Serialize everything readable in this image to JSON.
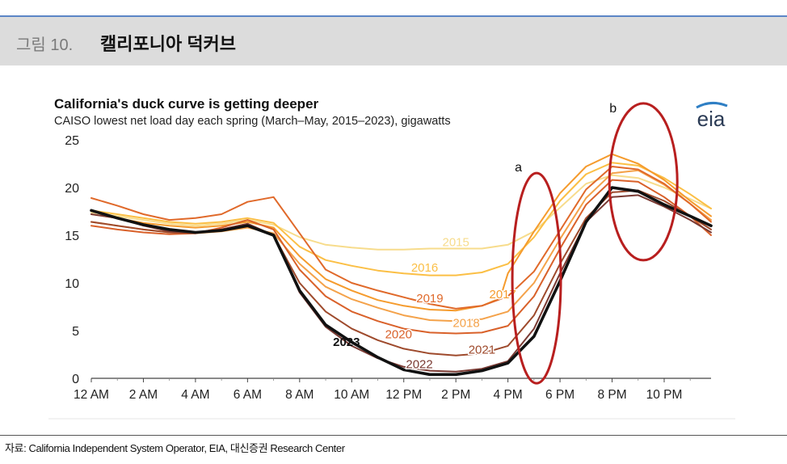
{
  "header": {
    "figure_label": "그림 10.",
    "figure_title": "캘리포니아 덕커브"
  },
  "source": "자료: California Independent System Operator, EIA, 대신증권 Research Center",
  "logo_text": "eia",
  "chart_data": {
    "type": "line",
    "title": "California's duck curve is getting deeper",
    "subtitle": "CAISO lowest net load day each spring (March–May, 2015–2023), gigawatts",
    "ylim": [
      0,
      25
    ],
    "yticks": [
      "0",
      "5",
      "10",
      "15",
      "20",
      "25"
    ],
    "xlim": [
      0,
      23.8
    ],
    "xticks": [
      {
        "hour": 0,
        "label": "12 AM"
      },
      {
        "hour": 2,
        "label": "2 AM"
      },
      {
        "hour": 4,
        "label": "4 AM"
      },
      {
        "hour": 6,
        "label": "6 AM"
      },
      {
        "hour": 8,
        "label": "8 AM"
      },
      {
        "hour": 10,
        "label": "10 AM"
      },
      {
        "hour": 12,
        "label": "12 PM"
      },
      {
        "hour": 14,
        "label": "2 PM"
      },
      {
        "hour": 16,
        "label": "4 PM"
      },
      {
        "hour": 18,
        "label": "6 PM"
      },
      {
        "hour": 20,
        "label": "8 PM"
      },
      {
        "hour": 22,
        "label": "10 PM"
      }
    ],
    "grid": false,
    "series": [
      {
        "name": "2015",
        "color": "#f7dc8c",
        "label_hour": 14.0,
        "label_value": 14.3,
        "x": [
          0,
          1,
          2,
          3,
          4,
          5,
          6,
          7,
          8,
          9,
          10,
          11,
          12,
          13,
          14,
          15,
          16,
          17,
          18,
          19,
          20,
          21,
          22,
          23,
          23.8
        ],
        "y": [
          17.4,
          17.0,
          16.6,
          16.2,
          16.0,
          16.2,
          16.6,
          16.1,
          14.8,
          14.0,
          13.7,
          13.5,
          13.5,
          13.6,
          13.6,
          13.6,
          14.0,
          15.4,
          17.9,
          20.4,
          21.3,
          21.0,
          20.0,
          18.8,
          17.8
        ]
      },
      {
        "name": "2016",
        "color": "#fbbf45",
        "label_hour": 12.8,
        "label_value": 11.6,
        "x": [
          0,
          1,
          2,
          3,
          4,
          5,
          6,
          7,
          8,
          9,
          10,
          11,
          12,
          13,
          14,
          15,
          16,
          17,
          18,
          19,
          20,
          21,
          22,
          23,
          23.8
        ],
        "y": [
          17.6,
          17.2,
          16.8,
          16.4,
          16.2,
          16.4,
          16.8,
          16.3,
          13.8,
          12.4,
          11.8,
          11.3,
          11.0,
          10.8,
          10.8,
          11.1,
          12.0,
          14.8,
          18.6,
          21.4,
          22.6,
          22.3,
          21.0,
          19.3,
          17.8
        ]
      },
      {
        "name": "2017",
        "color": "#f59b2d",
        "label_hour": 15.8,
        "label_value": 8.8,
        "x": [
          0,
          1,
          2,
          3,
          4,
          5,
          6,
          7,
          8,
          9,
          10,
          11,
          12,
          13,
          14,
          15,
          15.7,
          16,
          17,
          18,
          19,
          20,
          21,
          22,
          23,
          23.8
        ],
        "y": [
          17.2,
          16.8,
          16.3,
          16.0,
          15.8,
          16.0,
          16.4,
          15.8,
          12.8,
          10.4,
          9.2,
          8.2,
          7.6,
          7.2,
          7.1,
          7.6,
          8.4,
          11.0,
          15.4,
          19.4,
          22.2,
          23.5,
          22.5,
          20.8,
          18.6,
          17.0
        ]
      },
      {
        "name": "2018",
        "color": "#f4a24a",
        "label_hour": 14.4,
        "label_value": 5.8,
        "x": [
          0,
          1,
          2,
          3,
          4,
          5,
          6,
          7,
          8,
          9,
          10,
          11,
          12,
          13,
          14,
          15,
          16,
          17,
          18,
          19,
          20,
          21,
          22,
          23,
          23.8
        ],
        "y": [
          16.4,
          16.0,
          15.6,
          15.3,
          15.2,
          15.4,
          15.8,
          15.2,
          12.0,
          9.6,
          8.3,
          7.4,
          6.6,
          6.1,
          6.0,
          6.2,
          7.0,
          10.0,
          14.6,
          18.9,
          21.5,
          21.8,
          20.3,
          18.3,
          16.6
        ]
      },
      {
        "name": "2019",
        "color": "#e0692a",
        "label_hour": 13.0,
        "label_value": 8.4,
        "x": [
          0,
          1,
          2,
          3,
          4,
          5,
          6,
          7,
          8,
          9,
          10,
          11,
          12,
          13,
          14,
          15,
          16,
          17,
          18,
          19,
          20,
          21,
          22,
          23,
          23.8
        ],
        "y": [
          18.9,
          18.1,
          17.2,
          16.6,
          16.8,
          17.2,
          18.5,
          19.0,
          15.2,
          11.4,
          10.0,
          9.2,
          8.5,
          7.8,
          7.3,
          7.6,
          8.6,
          11.2,
          15.5,
          19.8,
          22.2,
          21.9,
          20.4,
          18.3,
          16.4
        ]
      },
      {
        "name": "2020",
        "color": "#d9612a",
        "label_hour": 11.8,
        "label_value": 4.6,
        "x": [
          0,
          1,
          2,
          3,
          4,
          5,
          6,
          7,
          8,
          9,
          10,
          11,
          12,
          13,
          14,
          15,
          16,
          17,
          18,
          19,
          20,
          21,
          22,
          23,
          23.8
        ],
        "y": [
          16.0,
          15.6,
          15.3,
          15.1,
          15.2,
          15.8,
          16.6,
          15.6,
          11.4,
          8.6,
          7.0,
          6.0,
          5.2,
          4.8,
          4.7,
          4.8,
          5.5,
          8.6,
          13.6,
          18.2,
          20.8,
          20.6,
          19.0,
          17.0,
          15.0
        ]
      },
      {
        "name": "2021",
        "color": "#9e4a2c",
        "label_hour": 15.0,
        "label_value": 3.0,
        "x": [
          0,
          1,
          2,
          3,
          4,
          5,
          6,
          7,
          8,
          9,
          10,
          11,
          12,
          13,
          14,
          15,
          16,
          17,
          18,
          19,
          20,
          21,
          22,
          23,
          23.8
        ],
        "y": [
          16.4,
          16.0,
          15.6,
          15.3,
          15.2,
          15.6,
          16.2,
          15.0,
          10.0,
          7.0,
          5.2,
          4.0,
          3.1,
          2.6,
          2.4,
          2.6,
          3.4,
          6.6,
          12.0,
          16.8,
          19.5,
          19.7,
          18.6,
          17.0,
          15.6
        ]
      },
      {
        "name": "2022",
        "color": "#7a3a33",
        "label_hour": 12.6,
        "label_value": 1.5,
        "x": [
          0,
          1,
          2,
          3,
          4,
          5,
          6,
          7,
          8,
          9,
          10,
          11,
          12,
          13,
          14,
          15,
          16,
          17,
          18,
          19,
          20,
          21,
          22,
          23,
          23.8
        ],
        "y": [
          17.2,
          16.8,
          16.0,
          15.4,
          15.3,
          15.6,
          16.2,
          15.0,
          9.0,
          5.4,
          3.4,
          2.1,
          1.2,
          0.8,
          0.7,
          1.0,
          1.8,
          5.2,
          11.0,
          16.4,
          19.0,
          19.2,
          18.0,
          16.6,
          15.3
        ]
      },
      {
        "name": "2023",
        "color": "#111111",
        "label_hour": 9.8,
        "label_value": 3.8,
        "bold": true,
        "x": [
          0,
          1,
          2,
          3,
          4,
          5,
          6,
          7,
          8,
          9,
          10,
          11,
          12,
          13,
          14,
          15,
          16,
          17,
          18,
          19,
          20,
          21,
          22,
          23,
          23.8
        ],
        "y": [
          17.6,
          16.8,
          16.1,
          15.6,
          15.3,
          15.5,
          16.0,
          15.0,
          9.2,
          5.6,
          3.8,
          2.2,
          0.9,
          0.4,
          0.4,
          0.8,
          1.6,
          4.4,
          10.2,
          16.4,
          20.0,
          19.6,
          18.2,
          17.0,
          16.0
        ]
      }
    ],
    "annotations": [
      {
        "label": "a",
        "center_hour": 17.1,
        "center_value": 10.5
      },
      {
        "label": "b",
        "center_hour": 21.2,
        "center_value": 20.6
      }
    ]
  }
}
